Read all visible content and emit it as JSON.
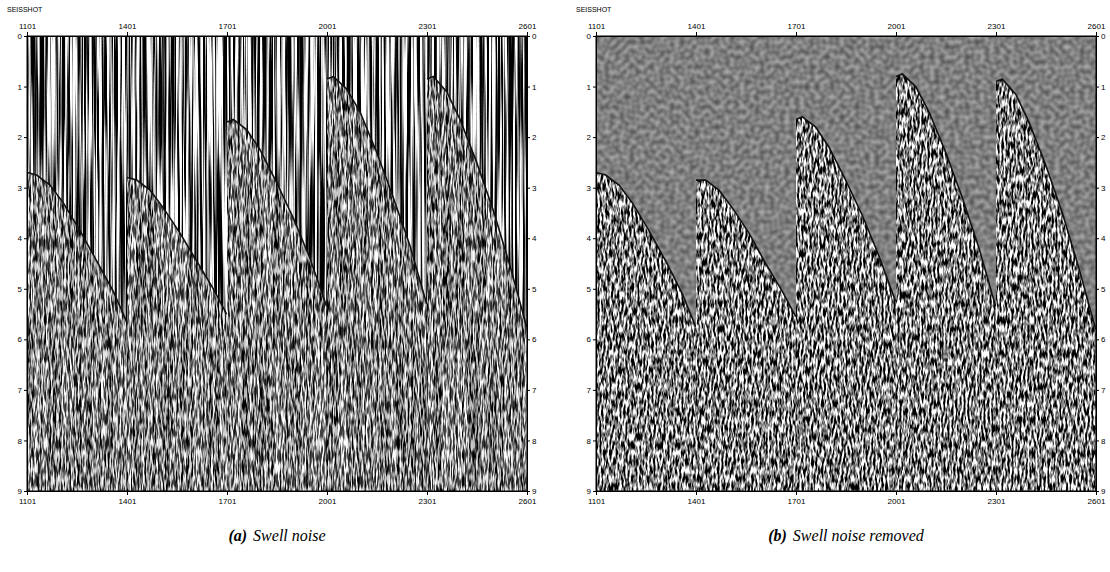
{
  "chart_data": [
    {
      "type": "line",
      "panel_label": "(a)",
      "title": "Swell noise",
      "x_label": "SEISSHOT",
      "xlim": [
        1101,
        2601
      ],
      "xticks": [
        1101,
        1401,
        1701,
        2001,
        2301,
        2601
      ],
      "ylim": [
        0,
        9
      ],
      "yticks": [
        0,
        1,
        2,
        3,
        4,
        5,
        6,
        7,
        8,
        9
      ],
      "series": [
        {
          "x": [
            1101,
            1130,
            1170,
            1210,
            1260,
            1310,
            1360,
            1400
          ],
          "values": [
            2.7,
            2.75,
            2.95,
            3.3,
            3.85,
            4.45,
            5.05,
            5.65
          ]
        },
        {
          "x": [
            1401,
            1430,
            1470,
            1510,
            1560,
            1610,
            1660,
            1700
          ],
          "values": [
            2.8,
            2.85,
            3.05,
            3.4,
            3.9,
            4.45,
            5.0,
            5.5
          ]
        },
        {
          "x": [
            1701,
            1720,
            1760,
            1800,
            1850,
            1900,
            1950,
            2000
          ],
          "values": [
            1.7,
            1.65,
            1.85,
            2.25,
            2.9,
            3.6,
            4.4,
            5.35
          ]
        },
        {
          "x": [
            2001,
            2020,
            2060,
            2100,
            2150,
            2200,
            2250,
            2300
          ],
          "values": [
            0.85,
            0.8,
            1.05,
            1.5,
            2.3,
            3.2,
            4.15,
            5.3
          ]
        },
        {
          "x": [
            2301,
            2320,
            2360,
            2400,
            2450,
            2500,
            2550,
            2600
          ],
          "values": [
            0.85,
            0.8,
            1.1,
            1.65,
            2.5,
            3.45,
            4.55,
            5.75
          ]
        }
      ]
    },
    {
      "type": "line",
      "panel_label": "(b)",
      "title": "Swell noise removed",
      "x_label": "SEISSHOT",
      "xlim": [
        1101,
        2601
      ],
      "xticks": [
        1101,
        1401,
        1701,
        2001,
        2301,
        2601
      ],
      "ylim": [
        0,
        9
      ],
      "yticks": [
        0,
        1,
        2,
        3,
        4,
        5,
        6,
        7,
        8,
        9
      ],
      "series": [
        {
          "x": [
            1101,
            1130,
            1170,
            1210,
            1260,
            1310,
            1360,
            1400
          ],
          "values": [
            2.7,
            2.75,
            2.95,
            3.3,
            3.85,
            4.45,
            5.1,
            5.75
          ]
        },
        {
          "x": [
            1401,
            1430,
            1470,
            1510,
            1560,
            1610,
            1660,
            1700
          ],
          "values": [
            2.85,
            2.85,
            3.05,
            3.4,
            3.9,
            4.5,
            5.05,
            5.55
          ]
        },
        {
          "x": [
            1701,
            1720,
            1760,
            1800,
            1850,
            1900,
            1950,
            2000
          ],
          "values": [
            1.65,
            1.6,
            1.8,
            2.2,
            2.85,
            3.55,
            4.35,
            5.25
          ]
        },
        {
          "x": [
            2001,
            2020,
            2060,
            2100,
            2150,
            2200,
            2250,
            2300
          ],
          "values": [
            0.8,
            0.75,
            1.0,
            1.5,
            2.3,
            3.2,
            4.2,
            5.35
          ]
        },
        {
          "x": [
            2301,
            2320,
            2360,
            2400,
            2450,
            2500,
            2550,
            2600
          ],
          "values": [
            0.9,
            0.85,
            1.15,
            1.7,
            2.55,
            3.5,
            4.6,
            5.8
          ]
        }
      ]
    }
  ]
}
